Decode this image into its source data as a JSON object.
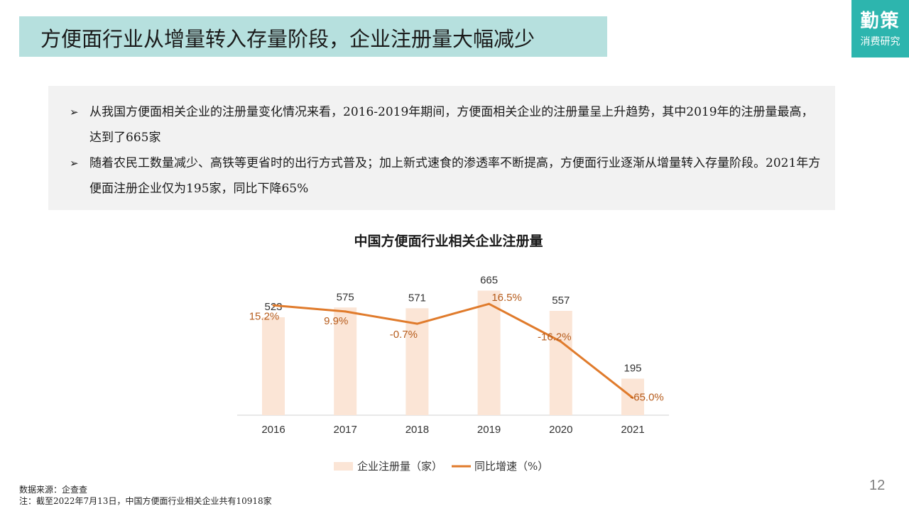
{
  "slide": {
    "title": "方便面行业从增量转入存量阶段，企业注册量大幅减少",
    "logo_main": "勤策",
    "logo_sub": "消费研究",
    "page_number": "12",
    "bullet_icon": "arrow-bullet-icon",
    "bullets": [
      "从我国方便面相关企业的注册量变化情况来看，2016-2019年期间，方便面相关企业的注册量呈上升趋势，其中2019年的注册量最高，达到了665家",
      "随着农民工数量减少、高铁等更省时的出行方式普及；加上新式速食的渗透率不断提高，方便面行业逐渐从增量转入存量阶段。2021年方便面注册企业仅为195家，同比下降65%"
    ],
    "source": "数据来源：企查查",
    "note": "注：截至2022年7月13日，中国方便面行业相关企业共有10918家",
    "colors": {
      "title_bg": "#b6e0de",
      "logo_bg": "#2db5ae",
      "summary_bg": "#f2f2f2",
      "bar": "#fbe5d6",
      "line": "#e07b2c",
      "rate_label": "#b65c1c"
    }
  },
  "chart_data": {
    "type": "bar",
    "title": "中国方便面行业相关企业注册量",
    "categories": [
      "2016",
      "2017",
      "2018",
      "2019",
      "2020",
      "2021"
    ],
    "series": [
      {
        "name": "企业注册量（家）",
        "type": "bar",
        "values": [
          523,
          575,
          571,
          665,
          557,
          195
        ],
        "labels": [
          "523",
          "575",
          "571",
          "665",
          "557",
          "195"
        ]
      },
      {
        "name": "同比增速（%）",
        "type": "line",
        "values": [
          15.2,
          9.9,
          -0.7,
          16.5,
          -16.2,
          -65.0
        ],
        "labels": [
          "15.2%",
          "9.9%",
          "-0.7%",
          "16.5%",
          "-16.2%",
          "-65.0%"
        ]
      }
    ],
    "bar_axis_range": [
      0,
      720
    ],
    "rate_axis_range": [
      -80,
      40
    ],
    "legend_position": "bottom",
    "grid": false
  }
}
